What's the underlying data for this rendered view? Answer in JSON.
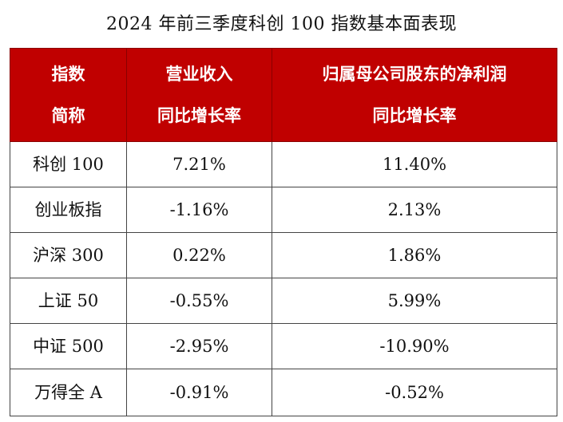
{
  "title": "2024 年前三季度科创 100 指数基本面表现",
  "header": {
    "col1": [
      "指数",
      "简称"
    ],
    "col2": [
      "营业收入",
      "同比增长率"
    ],
    "col3": [
      "归属母公司股东的净利润",
      "同比增长率"
    ]
  },
  "rows": [
    {
      "name": "科创 100",
      "revenue": "7.21%",
      "profit": "11.40%"
    },
    {
      "name": "创业板指",
      "revenue": "-1.16%",
      "profit": "2.13%"
    },
    {
      "name": "沪深 300",
      "revenue": "0.22%",
      "profit": "1.86%"
    },
    {
      "name": "上证 50",
      "revenue": "-0.55%",
      "profit": "5.99%"
    },
    {
      "name": "中证 500",
      "revenue": "-2.95%",
      "profit": "-10.90%"
    },
    {
      "name": "万得全 A",
      "revenue": "-0.91%",
      "profit": "-0.52%"
    }
  ],
  "colors": {
    "header_bg": "#c00000",
    "header_text": "#ffffff"
  }
}
